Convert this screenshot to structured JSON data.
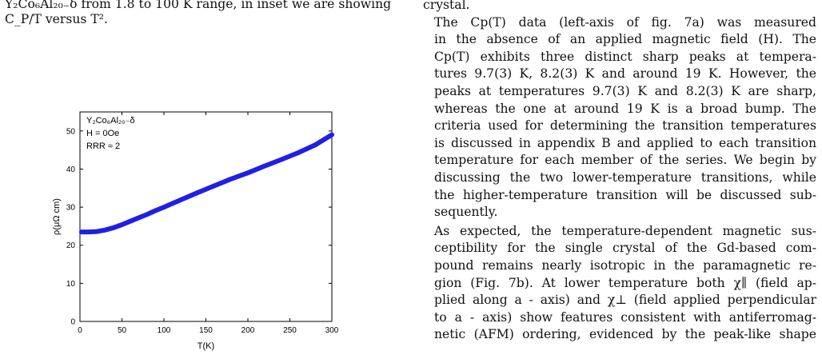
{
  "caption": {
    "line1": "Y₂Co₆Al₂₀₋δ from 1.8 to 100 K range, in inset we are showing",
    "line2": "C_P/T versus T²."
  },
  "right_column": {
    "top_line": "crystal.",
    "para1": [
      "The Cp(T) data (left-axis of fig. 7a) was measured",
      "in the absence of an applied magnetic field (H). The",
      "Cp(T) exhibits three distinct sharp peaks at tempera-",
      "tures 9.7(3) K, 8.2(3) K and around 19 K. However, the",
      "peaks at temperatures 9.7(3) K and 8.2(3) K are sharp,",
      "whereas the one at around 19 K is a broad bump. The",
      "criteria used for determining the transition temperatures",
      "is discussed in appendix B and applied to each transition",
      "temperature for each member of the series. We begin by",
      "discussing the two lower-temperature transitions, while",
      "the higher-temperature transition will be discussed sub-",
      "sequently."
    ],
    "para2": [
      "As expected, the temperature-dependent magnetic sus-",
      "ceptibility for the single crystal of the Gd-based com-",
      "pound remains nearly isotropic in the paramagnetic re-",
      "gion (Fig. 7b). At lower temperature both χ∥ (field ap-",
      "plied along a - axis) and χ⊥ (field applied perpendicular",
      "to a - axis) show features consistent with antiferromag-",
      "netic (AFM) ordering, evidenced by the peak-like shape"
    ]
  },
  "chart_data": {
    "type": "line",
    "xlabel": "T(K)",
    "ylabel": "ρ(μΩ cm)",
    "xlim": [
      0,
      300
    ],
    "ylim": [
      0,
      55
    ],
    "xticks": [
      0,
      50,
      100,
      150,
      200,
      250,
      300
    ],
    "yticks": [
      0,
      10,
      20,
      30,
      40,
      50
    ],
    "annotations": [
      "Y₂Co₆Al₂₀₋δ",
      "H = 0Oe",
      "RRR ≈ 2"
    ],
    "line_color": "#1f1fe6",
    "series": [
      {
        "x": [
          1.8,
          10,
          20,
          30,
          40,
          50,
          60,
          70,
          80,
          90,
          100,
          120,
          140,
          160,
          180,
          200,
          220,
          240,
          260,
          280,
          300
        ],
        "y": [
          23.5,
          23.5,
          23.6,
          24.0,
          24.6,
          25.4,
          26.3,
          27.2,
          28.1,
          29.1,
          30.0,
          31.9,
          33.8,
          35.6,
          37.4,
          39.0,
          40.8,
          42.5,
          44.3,
          46.3,
          49.0
        ]
      }
    ]
  }
}
